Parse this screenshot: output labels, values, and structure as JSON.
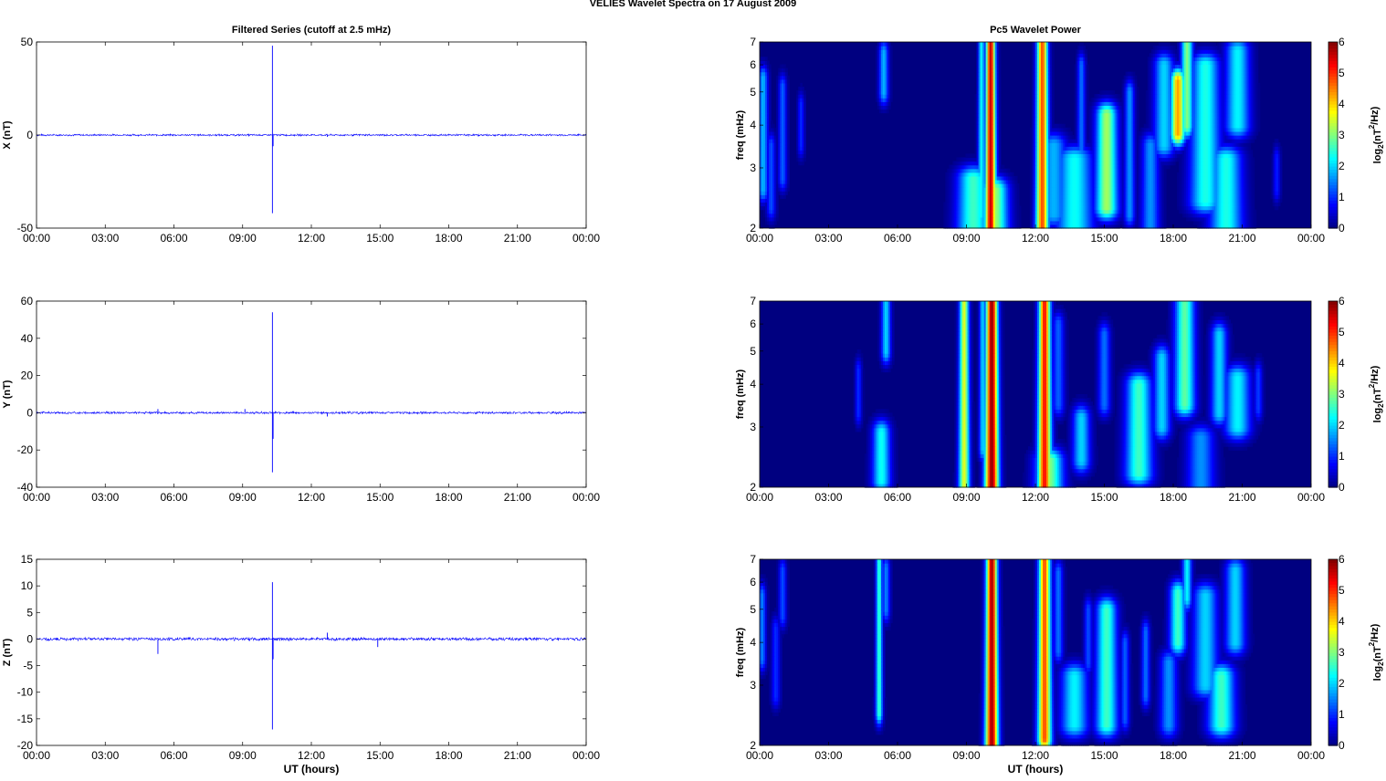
{
  "figure": {
    "title": "VELIES Wavelet Spectra on 17 August    2009"
  },
  "colors": {
    "series_line": "#0000ff",
    "axis": "#000000",
    "background": "#ffffff",
    "colormap": "jet"
  },
  "chart_data": [
    {
      "type": "line",
      "title": "Filtered Series (cutoff at 2.5 mHz)",
      "xlabel": "",
      "ylabel": "X (nT)",
      "xticks": [
        "00:00",
        "03:00",
        "06:00",
        "09:00",
        "12:00",
        "15:00",
        "18:00",
        "21:00",
        "00:00"
      ],
      "xlim": [
        0,
        24
      ],
      "ylim": [
        -50,
        50
      ],
      "yticks": [
        -50,
        0,
        50
      ],
      "series": [
        {
          "x": [
            0,
            10.3,
            10.3,
            10.3,
            10.35,
            24
          ],
          "y": [
            0,
            0,
            48,
            -42,
            0,
            0
          ]
        }
      ],
      "spikes": [
        {
          "x": 10.3,
          "y": 48
        },
        {
          "x": 10.3,
          "y": -42
        },
        {
          "x": 10.33,
          "y": -6
        },
        {
          "x": 12.7,
          "y": -1
        }
      ],
      "noise_amplitude": 0.6
    },
    {
      "type": "heatmap",
      "title": "Pc5 Wavelet Power",
      "xlabel": "",
      "ylabel": "freq (mHz)",
      "colorbar_label": "log2(nT2/Hz)",
      "xticks": [
        "00:00",
        "03:00",
        "06:00",
        "09:00",
        "12:00",
        "15:00",
        "18:00",
        "21:00",
        "00:00"
      ],
      "xlim": [
        0,
        24
      ],
      "yticks": [
        2,
        3,
        4,
        5,
        6,
        7
      ],
      "ylim": [
        2,
        7
      ],
      "yscale": "log",
      "clim": [
        0,
        6
      ],
      "colorbar_ticks": [
        0,
        1,
        2,
        3,
        4,
        5,
        6
      ],
      "blobs": [
        {
          "t": 0.15,
          "f0": 2.6,
          "f1": 5.5,
          "w": 0.12,
          "v": 1.8
        },
        {
          "t": 0.5,
          "f0": 2.3,
          "f1": 3.5,
          "w": 0.1,
          "v": 1.2
        },
        {
          "t": 1.0,
          "f0": 2.8,
          "f1": 5.2,
          "w": 0.1,
          "v": 1.3
        },
        {
          "t": 1.8,
          "f0": 3.5,
          "f1": 4.6,
          "w": 0.08,
          "v": 1.0
        },
        {
          "t": 5.4,
          "f0": 5.0,
          "f1": 6.5,
          "w": 0.12,
          "v": 1.8
        },
        {
          "t": 9.3,
          "f0": 2.0,
          "f1": 2.8,
          "w": 0.35,
          "v": 2.6
        },
        {
          "t": 9.65,
          "f0": 2.2,
          "f1": 7.0,
          "w": 0.08,
          "v": 2.3
        },
        {
          "t": 10.05,
          "f0": 2.0,
          "f1": 7.0,
          "w": 0.12,
          "v": 5.6
        },
        {
          "t": 10.2,
          "f0": 2.0,
          "f1": 2.6,
          "w": 0.3,
          "v": 3.2
        },
        {
          "t": 12.3,
          "f0": 2.0,
          "f1": 7.0,
          "w": 0.14,
          "v": 4.8
        },
        {
          "t": 12.8,
          "f0": 2.2,
          "f1": 3.5,
          "w": 0.3,
          "v": 1.8
        },
        {
          "t": 13.7,
          "f0": 2.0,
          "f1": 3.2,
          "w": 0.4,
          "v": 2.3
        },
        {
          "t": 14.0,
          "f0": 2.5,
          "f1": 6.0,
          "w": 0.1,
          "v": 1.4
        },
        {
          "t": 15.1,
          "f0": 2.3,
          "f1": 4.3,
          "w": 0.25,
          "v": 3.2
        },
        {
          "t": 16.1,
          "f0": 2.2,
          "f1": 5.0,
          "w": 0.12,
          "v": 1.6
        },
        {
          "t": 17.0,
          "f0": 2.0,
          "f1": 3.5,
          "w": 0.2,
          "v": 1.6
        },
        {
          "t": 17.6,
          "f0": 3.5,
          "f1": 6.0,
          "w": 0.25,
          "v": 2.0
        },
        {
          "t": 18.2,
          "f0": 3.8,
          "f1": 5.4,
          "w": 0.18,
          "v": 4.3
        },
        {
          "t": 18.6,
          "f0": 4.0,
          "f1": 7.0,
          "w": 0.15,
          "v": 3.0
        },
        {
          "t": 19.4,
          "f0": 2.4,
          "f1": 6.0,
          "w": 0.35,
          "v": 2.4
        },
        {
          "t": 20.3,
          "f0": 2.0,
          "f1": 3.2,
          "w": 0.35,
          "v": 2.4
        },
        {
          "t": 20.8,
          "f0": 4.0,
          "f1": 6.6,
          "w": 0.3,
          "v": 2.2
        },
        {
          "t": 22.5,
          "f0": 2.6,
          "f1": 3.2,
          "w": 0.08,
          "v": 0.9
        }
      ]
    },
    {
      "type": "line",
      "title": "",
      "xlabel": "",
      "ylabel": "Y (nT)",
      "xticks": [
        "00:00",
        "03:00",
        "06:00",
        "09:00",
        "12:00",
        "15:00",
        "18:00",
        "21:00",
        "00:00"
      ],
      "xlim": [
        0,
        24
      ],
      "ylim": [
        -40,
        60
      ],
      "yticks": [
        -40,
        -20,
        0,
        20,
        40,
        60
      ],
      "series": [
        {
          "x": [
            0,
            24
          ],
          "y": [
            0,
            0
          ]
        }
      ],
      "spikes": [
        {
          "x": 10.3,
          "y": 54
        },
        {
          "x": 10.3,
          "y": -32
        },
        {
          "x": 10.33,
          "y": -14
        },
        {
          "x": 5.3,
          "y": 2
        },
        {
          "x": 9.1,
          "y": 2
        },
        {
          "x": 12.7,
          "y": -2
        }
      ],
      "noise_amplitude": 0.7
    },
    {
      "type": "heatmap",
      "title": "",
      "xlabel": "",
      "ylabel": "freq (mHz)",
      "colorbar_label": "log2(nT2/Hz)",
      "xticks": [
        "00:00",
        "03:00",
        "06:00",
        "09:00",
        "12:00",
        "15:00",
        "18:00",
        "21:00",
        "00:00"
      ],
      "xlim": [
        0,
        24
      ],
      "yticks": [
        2,
        3,
        4,
        5,
        6,
        7
      ],
      "ylim": [
        2,
        7
      ],
      "yscale": "log",
      "clim": [
        0,
        6
      ],
      "colorbar_ticks": [
        0,
        1,
        2,
        3,
        4,
        5,
        6
      ],
      "blobs": [
        {
          "t": 4.3,
          "f0": 3.3,
          "f1": 4.4,
          "w": 0.08,
          "v": 1.0
        },
        {
          "t": 5.3,
          "f0": 2.1,
          "f1": 2.9,
          "w": 0.2,
          "v": 2.3
        },
        {
          "t": 5.5,
          "f0": 5.0,
          "f1": 7.0,
          "w": 0.12,
          "v": 2.0
        },
        {
          "t": 8.9,
          "f0": 2.0,
          "f1": 7.0,
          "w": 0.12,
          "v": 3.6
        },
        {
          "t": 9.7,
          "f0": 2.6,
          "f1": 7.0,
          "w": 0.08,
          "v": 2.0
        },
        {
          "t": 10.1,
          "f0": 2.0,
          "f1": 7.0,
          "w": 0.15,
          "v": 5.9
        },
        {
          "t": 12.4,
          "f0": 2.0,
          "f1": 7.0,
          "w": 0.15,
          "v": 5.2
        },
        {
          "t": 12.6,
          "f0": 2.0,
          "f1": 2.4,
          "w": 0.3,
          "v": 3.0
        },
        {
          "t": 13.0,
          "f0": 3.5,
          "f1": 6.0,
          "w": 0.15,
          "v": 1.3
        },
        {
          "t": 14.0,
          "f0": 2.4,
          "f1": 3.2,
          "w": 0.2,
          "v": 2.0
        },
        {
          "t": 15.0,
          "f0": 3.5,
          "f1": 5.6,
          "w": 0.15,
          "v": 1.4
        },
        {
          "t": 16.5,
          "f0": 2.2,
          "f1": 4.0,
          "w": 0.3,
          "v": 2.6
        },
        {
          "t": 17.5,
          "f0": 3.0,
          "f1": 4.8,
          "w": 0.2,
          "v": 2.0
        },
        {
          "t": 18.5,
          "f0": 3.5,
          "f1": 7.0,
          "w": 0.25,
          "v": 2.8
        },
        {
          "t": 19.2,
          "f0": 2.0,
          "f1": 2.8,
          "w": 0.3,
          "v": 1.6
        },
        {
          "t": 20.0,
          "f0": 3.3,
          "f1": 5.6,
          "w": 0.2,
          "v": 2.0
        },
        {
          "t": 20.8,
          "f0": 3.0,
          "f1": 4.2,
          "w": 0.3,
          "v": 2.2
        },
        {
          "t": 21.7,
          "f0": 3.4,
          "f1": 4.3,
          "w": 0.1,
          "v": 1.1
        }
      ]
    },
    {
      "type": "line",
      "title": "",
      "xlabel": "UT (hours)",
      "ylabel": "Z (nT)",
      "xticks": [
        "00:00",
        "03:00",
        "06:00",
        "09:00",
        "12:00",
        "15:00",
        "18:00",
        "21:00",
        "00:00"
      ],
      "xlim": [
        0,
        24
      ],
      "ylim": [
        -20,
        15
      ],
      "yticks": [
        -20,
        -15,
        -10,
        -5,
        0,
        5,
        10,
        15
      ],
      "series": [
        {
          "x": [
            0,
            24
          ],
          "y": [
            0,
            0
          ]
        }
      ],
      "spikes": [
        {
          "x": 10.3,
          "y": 10.7
        },
        {
          "x": 10.3,
          "y": -17
        },
        {
          "x": 10.33,
          "y": -3.8
        },
        {
          "x": 5.3,
          "y": -2.8
        },
        {
          "x": 12.7,
          "y": 1.2
        },
        {
          "x": 14.9,
          "y": -1.5
        }
      ],
      "noise_amplitude": 0.35
    },
    {
      "type": "heatmap",
      "title": "",
      "xlabel": "UT (hours)",
      "ylabel": "freq (mHz)",
      "colorbar_label": "log2(nT2/Hz)",
      "xticks": [
        "00:00",
        "03:00",
        "06:00",
        "09:00",
        "12:00",
        "15:00",
        "18:00",
        "21:00",
        "00:00"
      ],
      "xlim": [
        0,
        24
      ],
      "yticks": [
        2,
        3,
        4,
        5,
        6,
        7
      ],
      "ylim": [
        2,
        7
      ],
      "yscale": "log",
      "clim": [
        0,
        6
      ],
      "colorbar_ticks": [
        0,
        1,
        2,
        3,
        4,
        5,
        6
      ],
      "blobs": [
        {
          "t": 0.1,
          "f0": 3.6,
          "f1": 5.5,
          "w": 0.1,
          "v": 1.5
        },
        {
          "t": 0.7,
          "f0": 2.8,
          "f1": 4.4,
          "w": 0.1,
          "v": 1.0
        },
        {
          "t": 1.0,
          "f0": 4.8,
          "f1": 6.5,
          "w": 0.1,
          "v": 1.2
        },
        {
          "t": 5.2,
          "f0": 2.5,
          "f1": 7.0,
          "w": 0.08,
          "v": 2.6
        },
        {
          "t": 5.5,
          "f0": 5.0,
          "f1": 6.6,
          "w": 0.1,
          "v": 1.5
        },
        {
          "t": 10.1,
          "f0": 2.0,
          "f1": 7.0,
          "w": 0.14,
          "v": 5.8
        },
        {
          "t": 12.4,
          "f0": 2.1,
          "f1": 7.0,
          "w": 0.15,
          "v": 4.8
        },
        {
          "t": 13.0,
          "f0": 3.8,
          "f1": 6.4,
          "w": 0.12,
          "v": 1.4
        },
        {
          "t": 13.7,
          "f0": 2.3,
          "f1": 3.2,
          "w": 0.3,
          "v": 2.2
        },
        {
          "t": 14.3,
          "f0": 3.5,
          "f1": 5.0,
          "w": 0.1,
          "v": 1.2
        },
        {
          "t": 15.1,
          "f0": 2.3,
          "f1": 5.0,
          "w": 0.25,
          "v": 2.6
        },
        {
          "t": 15.9,
          "f0": 2.4,
          "f1": 4.0,
          "w": 0.1,
          "v": 1.3
        },
        {
          "t": 16.8,
          "f0": 2.8,
          "f1": 4.3,
          "w": 0.1,
          "v": 1.4
        },
        {
          "t": 17.8,
          "f0": 2.3,
          "f1": 3.5,
          "w": 0.2,
          "v": 1.6
        },
        {
          "t": 18.2,
          "f0": 4.0,
          "f1": 5.6,
          "w": 0.2,
          "v": 2.6
        },
        {
          "t": 18.6,
          "f0": 5.4,
          "f1": 7.0,
          "w": 0.12,
          "v": 2.2
        },
        {
          "t": 19.4,
          "f0": 3.0,
          "f1": 5.5,
          "w": 0.3,
          "v": 2.0
        },
        {
          "t": 20.1,
          "f0": 2.3,
          "f1": 3.2,
          "w": 0.3,
          "v": 2.6
        },
        {
          "t": 20.7,
          "f0": 4.0,
          "f1": 6.5,
          "w": 0.25,
          "v": 2.0
        }
      ]
    }
  ]
}
